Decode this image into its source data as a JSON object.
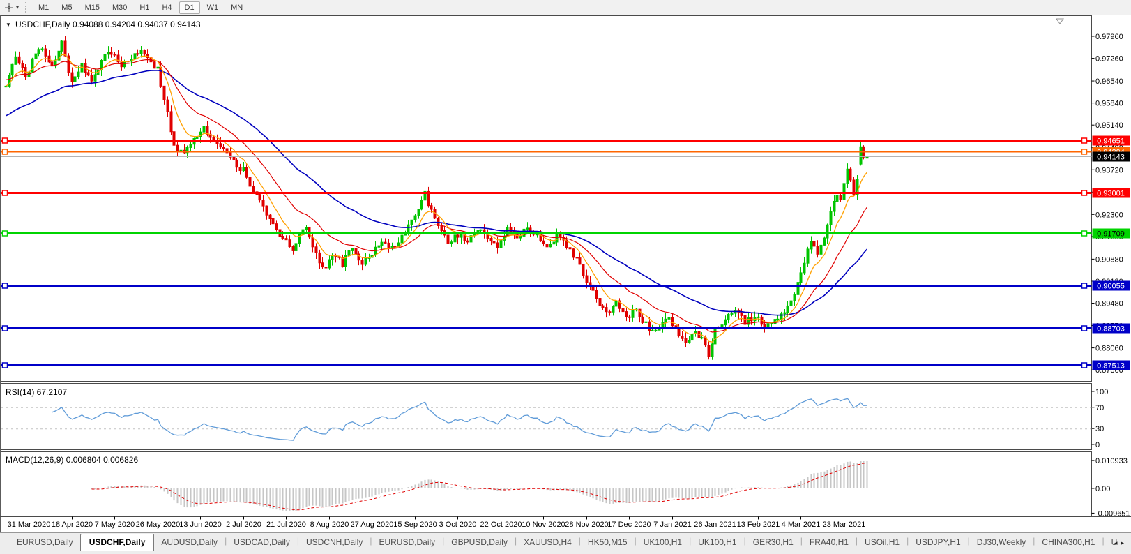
{
  "toolbar": {
    "dropdown_glyph": "▾",
    "timeframe_buttons": [
      "M1",
      "M5",
      "M15",
      "M30",
      "H1",
      "H4",
      "D1",
      "W1",
      "MN"
    ],
    "active_timeframe": "D1"
  },
  "main_chart": {
    "dropdown_glyph": "▼",
    "title_line": "USDCHF,Daily  0.94088 0.94204 0.94037 0.94143",
    "symbol": "USDCHF",
    "period": "Daily",
    "ohlc": {
      "open": "0.94088",
      "high": "0.94204",
      "low": "0.94037",
      "close": "0.94143"
    },
    "price_axis_ticks": [
      "0.97960",
      "0.97260",
      "0.96540",
      "0.95840",
      "0.95140",
      "0.94420",
      "0.93720",
      "0.93010",
      "0.92300",
      "0.91600",
      "0.90880",
      "0.90180",
      "0.89480",
      "0.88770",
      "0.88060",
      "0.87360"
    ],
    "horizontal_lines": [
      {
        "price": "0.94651",
        "color": "#FF0000",
        "thickness": 3,
        "text_color": "#FFFFFF"
      },
      {
        "price": "0.94294",
        "color": "#FF6600",
        "thickness": 2,
        "text_color": "#FFFFFF"
      },
      {
        "price": "0.93001",
        "color": "#FF0000",
        "thickness": 3,
        "text_color": "#FFFFFF"
      },
      {
        "price": "0.91709",
        "color": "#00D400",
        "thickness": 3,
        "text_color": "#000000"
      },
      {
        "price": "0.90055",
        "color": "#0000C8",
        "thickness": 3,
        "text_color": "#FFFFFF"
      },
      {
        "price": "0.88703",
        "color": "#0000C8",
        "thickness": 3,
        "text_color": "#FFFFFF"
      },
      {
        "price": "0.87513",
        "color": "#0000C8",
        "thickness": 3,
        "text_color": "#FFFFFF"
      }
    ],
    "current_price": {
      "label": "0.94143",
      "line_color": "#b4b4b4",
      "label_bg": "#000000",
      "label_fg": "#FFFFFF"
    }
  },
  "rsi_pane": {
    "label": "RSI(14) 67.2107",
    "axis_labels": [
      "100",
      "70",
      "30",
      "0"
    ],
    "dashed_levels": [
      70,
      30
    ]
  },
  "macd_pane": {
    "label": "MACD(12,26,9) 0.006804 0.006826",
    "axis_labels": [
      "0.010933",
      "0.00",
      "-0.009651"
    ]
  },
  "date_axis": {
    "labels": [
      "31 Mar 2020",
      "18 Apr 2020",
      "7 May 2020",
      "26 May 2020",
      "13 Jun 2020",
      "2 Jul 2020",
      "21 Jul 2020",
      "8 Aug 2020",
      "27 Aug 2020",
      "15 Sep 2020",
      "3 Oct 2020",
      "22 Oct 2020",
      "10 Nov 2020",
      "28 Nov 2020",
      "17 Dec 2020",
      "7 Jan 2021",
      "26 Jan 2021",
      "13 Feb 2021",
      "4 Mar 2021",
      "23 Mar 2021"
    ]
  },
  "tab_bar": {
    "separator_glyph": "|",
    "scroll_left_glyph": "◂",
    "scroll_right_glyph": "▸",
    "tabs": [
      {
        "label": "EURUSD,Daily",
        "active": false
      },
      {
        "label": "USDCHF,Daily",
        "active": true
      },
      {
        "label": "AUDUSD,Daily",
        "active": false
      },
      {
        "label": "USDCAD,Daily",
        "active": false
      },
      {
        "label": "USDCNH,Daily",
        "active": false
      },
      {
        "label": "EURUSD,Daily",
        "active": false
      },
      {
        "label": "GBPUSD,Daily",
        "active": false
      },
      {
        "label": "XAUUSD,H4",
        "active": false
      },
      {
        "label": "HK50,M15",
        "active": false
      },
      {
        "label": "UK100,H1",
        "active": false
      },
      {
        "label": "UK100,H1",
        "active": false
      },
      {
        "label": "GER30,H1",
        "active": false
      },
      {
        "label": "FRA40,H1",
        "active": false
      },
      {
        "label": "USOil,H1",
        "active": false
      },
      {
        "label": "USDJPY,H1",
        "active": false
      },
      {
        "label": "DJ30,Weekly",
        "active": false
      },
      {
        "label": "CHINA300,H1",
        "active": false
      },
      {
        "label": "U",
        "active": false
      }
    ]
  },
  "chart_data": {
    "type": "candlestick",
    "symbol": "USDCHF",
    "timeframe": "Daily",
    "title": "USDCHF,Daily 0.94088 0.94204 0.94037 0.94143",
    "y_axis": {
      "min": 0.8736,
      "max": 0.9825
    },
    "y_tick_labels": [
      "0.97960",
      "0.97260",
      "0.96540",
      "0.95840",
      "0.95140",
      "0.94420",
      "0.93720",
      "0.92300",
      "0.90880",
      "0.89480",
      "0.88060",
      "0.87360"
    ],
    "x_tick_labels": [
      "31 Mar 2020",
      "18 Apr 2020",
      "7 May 2020",
      "26 May 2020",
      "13 Jun 2020",
      "2 Jul 2020",
      "21 Jul 2020",
      "8 Aug 2020",
      "27 Aug 2020",
      "15 Sep 2020",
      "3 Oct 2020",
      "22 Oct 2020",
      "10 Nov 2020",
      "28 Nov 2020",
      "17 Dec 2020",
      "7 Jan 2021",
      "26 Jan 2021",
      "13 Feb 2021",
      "4 Mar 2021",
      "23 Mar 2021"
    ],
    "candle_count": 262,
    "price_path_anchors": [
      [
        0,
        0.9635
      ],
      [
        3,
        0.9738
      ],
      [
        6,
        0.9668
      ],
      [
        10,
        0.9762
      ],
      [
        14,
        0.97
      ],
      [
        17,
        0.9772
      ],
      [
        20,
        0.9648
      ],
      [
        23,
        0.97
      ],
      [
        26,
        0.9655
      ],
      [
        29,
        0.972
      ],
      [
        32,
        0.9748
      ],
      [
        35,
        0.97
      ],
      [
        38,
        0.9722
      ],
      [
        41,
        0.9748
      ],
      [
        44,
        0.9712
      ],
      [
        46,
        0.969
      ],
      [
        48,
        0.96
      ],
      [
        51,
        0.9455
      ],
      [
        54,
        0.942
      ],
      [
        57,
        0.9472
      ],
      [
        60,
        0.9505
      ],
      [
        63,
        0.9465
      ],
      [
        66,
        0.9442
      ],
      [
        69,
        0.9395
      ],
      [
        72,
        0.937
      ],
      [
        75,
        0.93
      ],
      [
        78,
        0.9248
      ],
      [
        81,
        0.9195
      ],
      [
        84,
        0.915
      ],
      [
        87,
        0.9118
      ],
      [
        89,
        0.916
      ],
      [
        91,
        0.9185
      ],
      [
        93,
        0.912
      ],
      [
        95,
        0.9075
      ],
      [
        97,
        0.9058
      ],
      [
        99,
        0.9105
      ],
      [
        102,
        0.9075
      ],
      [
        105,
        0.9118
      ],
      [
        108,
        0.9075
      ],
      [
        111,
        0.9108
      ],
      [
        114,
        0.9145
      ],
      [
        117,
        0.912
      ],
      [
        120,
        0.9165
      ],
      [
        123,
        0.9205
      ],
      [
        125,
        0.9245
      ],
      [
        127,
        0.9292
      ],
      [
        129,
        0.924
      ],
      [
        131,
        0.919
      ],
      [
        134,
        0.9135
      ],
      [
        137,
        0.9168
      ],
      [
        140,
        0.914
      ],
      [
        143,
        0.9185
      ],
      [
        146,
        0.916
      ],
      [
        149,
        0.9128
      ],
      [
        152,
        0.918
      ],
      [
        155,
        0.9152
      ],
      [
        158,
        0.9192
      ],
      [
        161,
        0.9165
      ],
      [
        164,
        0.912
      ],
      [
        167,
        0.9158
      ],
      [
        170,
        0.9128
      ],
      [
        173,
        0.9082
      ],
      [
        176,
        0.902
      ],
      [
        179,
        0.8958
      ],
      [
        182,
        0.8912
      ],
      [
        185,
        0.8952
      ],
      [
        188,
        0.89
      ],
      [
        191,
        0.8928
      ],
      [
        194,
        0.888
      ],
      [
        197,
        0.8852
      ],
      [
        200,
        0.8905
      ],
      [
        203,
        0.8868
      ],
      [
        206,
        0.882
      ],
      [
        209,
        0.8858
      ],
      [
        211,
        0.8828
      ],
      [
        213,
        0.878
      ],
      [
        215,
        0.8862
      ],
      [
        218,
        0.8895
      ],
      [
        221,
        0.8922
      ],
      [
        224,
        0.8888
      ],
      [
        227,
        0.8908
      ],
      [
        230,
        0.8868
      ],
      [
        233,
        0.8892
      ],
      [
        236,
        0.8925
      ],
      [
        238,
        0.8958
      ],
      [
        240,
        0.901
      ],
      [
        242,
        0.9075
      ],
      [
        244,
        0.9148
      ],
      [
        246,
        0.9105
      ],
      [
        248,
        0.9165
      ],
      [
        250,
        0.923
      ],
      [
        252,
        0.93
      ],
      [
        253,
        0.9272
      ],
      [
        254,
        0.933
      ],
      [
        255,
        0.9375
      ],
      [
        256,
        0.933
      ],
      [
        257,
        0.929
      ],
      [
        258,
        0.934
      ],
      [
        259,
        0.9445
      ],
      [
        260,
        0.942
      ],
      [
        261,
        0.94143
      ]
    ],
    "last_three_candles": [
      [
        0.939,
        0.94651,
        0.9385,
        0.9445
      ],
      [
        0.9445,
        0.945,
        0.9405,
        0.9412
      ],
      [
        0.94088,
        0.94204,
        0.94037,
        0.94143
      ]
    ],
    "key_extremes": {
      "sep_high": 0.9298,
      "jan_low": 0.8769,
      "final_high": 0.94651,
      "last_close": 0.94143
    },
    "moving_averages": [
      {
        "name": "fast",
        "period": 8,
        "color": "#FFA000"
      },
      {
        "name": "mid",
        "period": 21,
        "color": "#E00000"
      },
      {
        "name": "slow",
        "period": 50,
        "color": "#0000BE"
      }
    ],
    "horizontal_lines": [
      0.94651,
      0.94294,
      0.93001,
      0.91709,
      0.90055,
      0.88703,
      0.87513
    ],
    "indicators": [
      {
        "name": "RSI",
        "period": 14,
        "current": 67.2107,
        "range": [
          0,
          100
        ],
        "levels": [
          70,
          30
        ],
        "color": "#5F9BD8"
      },
      {
        "name": "MACD",
        "params": [
          12,
          26,
          9
        ],
        "values": [
          0.006804,
          0.006826
        ],
        "axis_max": 0.010933,
        "axis_min": -0.009651,
        "histogram_color": "#C6C6C6",
        "signal_color": "#E00000"
      }
    ],
    "colors": {
      "bull": "#00C400",
      "bear": "#E00000",
      "background": "#FFFFFF",
      "axis_text": "#000000"
    }
  }
}
